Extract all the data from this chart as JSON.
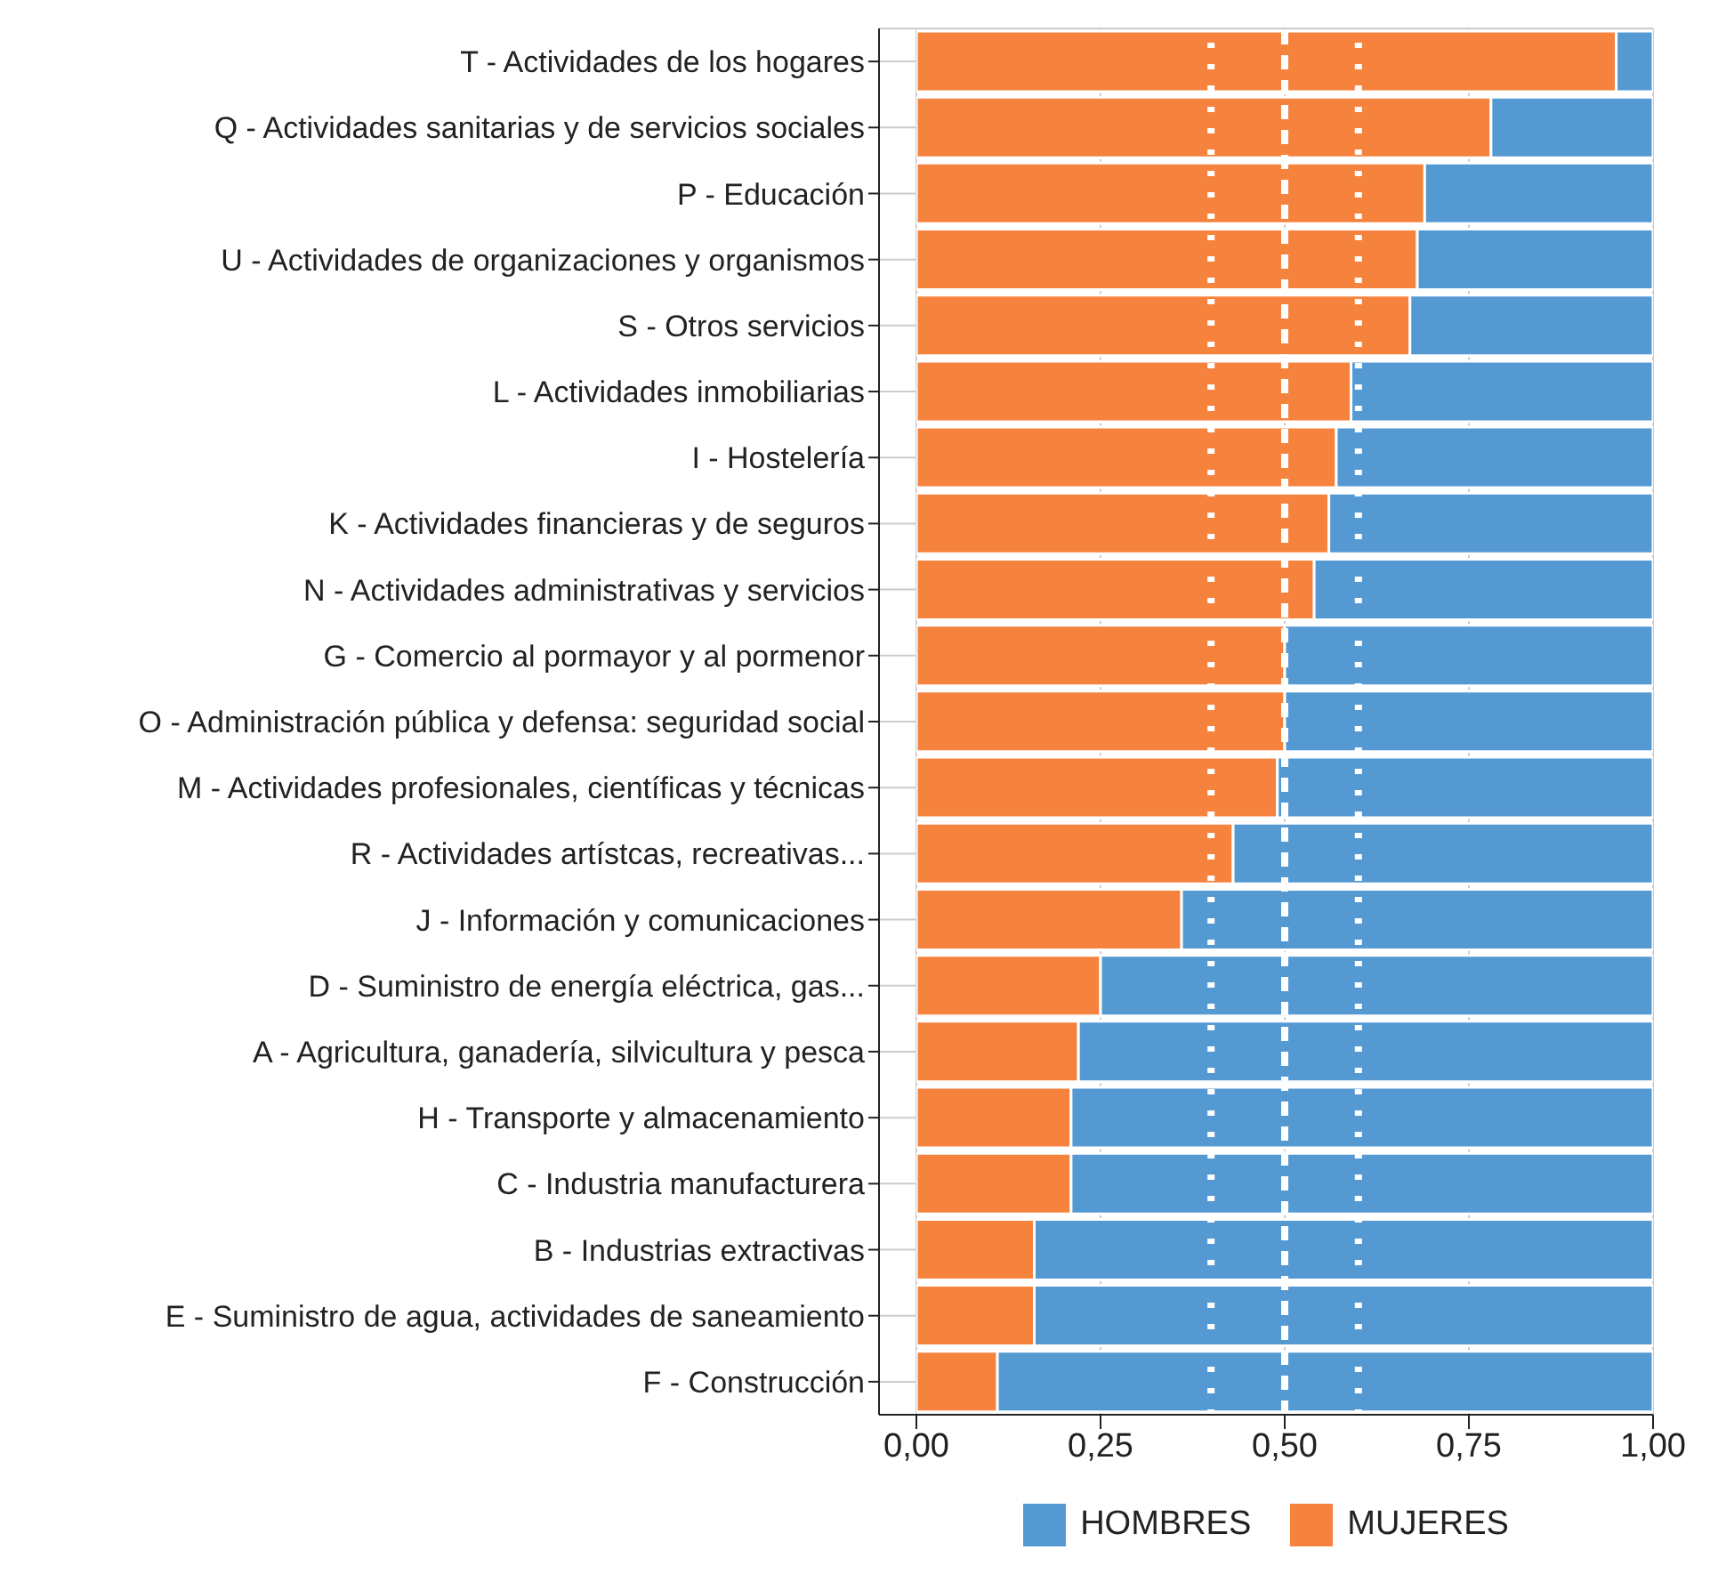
{
  "chart_data": {
    "type": "bar",
    "orientation": "horizontal",
    "stacked": true,
    "categories": [
      "T - Actividades de los hogares",
      "Q - Actividades sanitarias y de servicios sociales",
      "P - Educación",
      "U - Actividades de organizaciones y organismos",
      "S - Otros servicios",
      "L - Actividades inmobiliarias",
      "I - Hostelería",
      "K - Actividades financieras y de seguros",
      "N - Actividades administrativas y servicios",
      "G - Comercio al pormayor y al pormenor",
      "O - Administración pública y defensa: seguridad social",
      "M - Actividades profesionales, científicas y técnicas",
      "R - Actividades artístcas, recreativas...",
      "J - Información y comunicaciones",
      "D - Suministro de energía eléctrica, gas...",
      "A - Agricultura, ganadería, silvicultura y pesca",
      "H - Transporte y almacenamiento",
      "C - Industria manufacturera",
      "B - Industrias extractivas",
      "E - Suministro de agua, actividades de saneamiento",
      "F - Construcción"
    ],
    "series": [
      {
        "name": "MUJERES",
        "color": "#f5823d",
        "values": [
          0.95,
          0.78,
          0.69,
          0.68,
          0.67,
          0.59,
          0.57,
          0.56,
          0.54,
          0.5,
          0.5,
          0.49,
          0.43,
          0.36,
          0.25,
          0.22,
          0.21,
          0.21,
          0.16,
          0.16,
          0.11
        ]
      },
      {
        "name": "HOMBRES",
        "color": "#5599d3",
        "values": [
          0.05,
          0.22,
          0.31,
          0.32,
          0.33,
          0.41,
          0.43,
          0.44,
          0.46,
          0.5,
          0.5,
          0.51,
          0.57,
          0.64,
          0.75,
          0.78,
          0.79,
          0.79,
          0.84,
          0.84,
          0.89
        ]
      }
    ],
    "xlim": [
      0,
      1
    ],
    "xticks": [
      {
        "value": 0,
        "label": "0,00"
      },
      {
        "value": 0.25,
        "label": "0,25"
      },
      {
        "value": 0.5,
        "label": "0,50"
      },
      {
        "value": 0.75,
        "label": "0,75"
      },
      {
        "value": 1,
        "label": "1,00"
      }
    ],
    "ref_lines": [
      {
        "axis": "x",
        "value": 0.4,
        "color": "#ffffff",
        "line_style": "dotted"
      },
      {
        "axis": "x",
        "value": 0.5,
        "color": "#ffffff",
        "line_style": "dashed"
      },
      {
        "axis": "x",
        "value": 0.6,
        "color": "#ffffff",
        "line_style": "dotted"
      }
    ],
    "grid": true,
    "legend": "bottom"
  }
}
